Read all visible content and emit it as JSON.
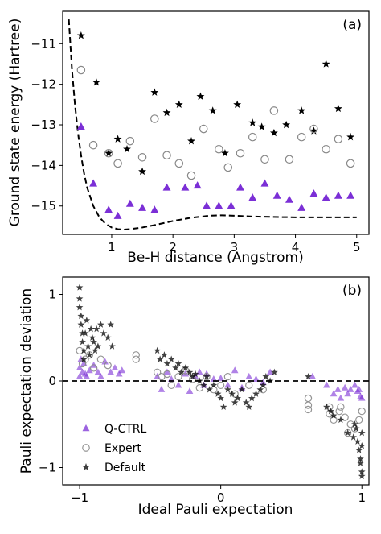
{
  "colors": {
    "qctrl": "#7b2fd6",
    "expert": "#888888",
    "default": "#000000",
    "theory": "#000000"
  },
  "chart_data": [
    {
      "panel": "(a)",
      "type": "scatter",
      "xlabel": "Be-H distance (Angstrom)",
      "ylabel": "Ground state energy (Hartree)",
      "xlim": [
        0.2,
        5.2
      ],
      "ylim": [
        -15.7,
        -10.2
      ],
      "xticks": [
        1,
        2,
        3,
        4,
        5
      ],
      "yticks": [
        -15,
        -14,
        -13,
        -12,
        -11
      ],
      "grid": false,
      "legend": "none",
      "theory_curve": {
        "style": "dashed",
        "x": [
          0.3,
          0.35,
          0.4,
          0.45,
          0.5,
          0.55,
          0.6,
          0.7,
          0.8,
          0.9,
          1.0,
          1.1,
          1.2,
          1.3,
          1.5,
          1.7,
          2.0,
          2.3,
          2.6,
          2.8,
          3.0,
          3.3,
          3.6,
          4.0,
          4.5,
          5.0
        ],
        "y": [
          -10.4,
          -11.6,
          -12.5,
          -13.2,
          -13.75,
          -14.2,
          -14.55,
          -15.0,
          -15.28,
          -15.44,
          -15.53,
          -15.57,
          -15.58,
          -15.57,
          -15.53,
          -15.47,
          -15.37,
          -15.29,
          -15.24,
          -15.23,
          -15.24,
          -15.26,
          -15.27,
          -15.28,
          -15.28,
          -15.28
        ]
      },
      "series": [
        {
          "name": "Default",
          "marker": "star",
          "x": [
            0.5,
            0.75,
            0.95,
            1.1,
            1.25,
            1.5,
            1.7,
            1.9,
            2.1,
            2.3,
            2.45,
            2.65,
            2.85,
            3.05,
            3.3,
            3.45,
            3.65,
            3.85,
            4.1,
            4.3,
            4.5,
            4.7,
            4.9
          ],
          "y": [
            -10.8,
            -11.95,
            -13.7,
            -13.35,
            -13.6,
            -14.15,
            -12.2,
            -12.7,
            -12.5,
            -13.4,
            -12.3,
            -12.65,
            -13.7,
            -12.5,
            -12.95,
            -13.05,
            -13.2,
            -13.0,
            -12.65,
            -13.15,
            -11.5,
            -12.6,
            -13.3
          ]
        },
        {
          "name": "Expert",
          "marker": "circle",
          "x": [
            0.5,
            0.7,
            0.95,
            1.1,
            1.3,
            1.5,
            1.7,
            1.9,
            2.1,
            2.3,
            2.5,
            2.75,
            2.9,
            3.1,
            3.3,
            3.5,
            3.65,
            3.9,
            4.1,
            4.3,
            4.5,
            4.7,
            4.9
          ],
          "y": [
            -11.65,
            -13.5,
            -13.7,
            -13.95,
            -13.4,
            -13.8,
            -12.85,
            -13.75,
            -13.95,
            -14.25,
            -13.1,
            -13.6,
            -14.05,
            -13.7,
            -13.3,
            -13.85,
            -12.65,
            -13.85,
            -13.3,
            -13.1,
            -13.6,
            -13.35,
            -13.95
          ]
        },
        {
          "name": "Q-CTRL",
          "marker": "triangle",
          "x": [
            0.5,
            0.7,
            0.95,
            1.1,
            1.3,
            1.5,
            1.7,
            1.9,
            2.2,
            2.4,
            2.55,
            2.75,
            2.95,
            3.1,
            3.3,
            3.5,
            3.7,
            3.9,
            4.1,
            4.3,
            4.5,
            4.7,
            4.9
          ],
          "y": [
            -13.05,
            -14.45,
            -15.1,
            -15.25,
            -14.95,
            -15.05,
            -15.1,
            -14.55,
            -14.55,
            -14.5,
            -15.0,
            -15.0,
            -15.0,
            -14.55,
            -14.8,
            -14.45,
            -14.75,
            -14.85,
            -15.05,
            -14.7,
            -14.8,
            -14.75,
            -14.75
          ]
        }
      ]
    },
    {
      "panel": "(b)",
      "type": "scatter",
      "xlabel": "Ideal Pauli expectation",
      "ylabel": "Pauli expectation deviation",
      "xlim": [
        -1.12,
        1.05
      ],
      "ylim": [
        -1.2,
        1.2
      ],
      "xticks": [
        -1,
        0,
        1
      ],
      "yticks": [
        -1,
        0,
        1
      ],
      "grid": false,
      "reference_line": {
        "y": 0,
        "style": "dashed"
      },
      "legend_position": "lower-left",
      "legend": [
        "Q-CTRL",
        "Expert",
        "Default"
      ],
      "series": [
        {
          "name": "Q-CTRL",
          "marker": "triangle",
          "x": [
            -1.0,
            -1.0,
            -0.99,
            -0.98,
            -0.97,
            -0.96,
            -0.95,
            -0.93,
            -0.9,
            -0.87,
            -0.85,
            -0.82,
            -0.78,
            -0.75,
            -0.72,
            -0.7,
            -0.45,
            -0.42,
            -0.38,
            -0.35,
            -0.3,
            -0.25,
            -0.22,
            -0.18,
            -0.15,
            -0.12,
            -0.1,
            -0.05,
            0.0,
            0.05,
            0.1,
            0.15,
            0.2,
            0.25,
            0.3,
            0.35,
            0.65,
            0.75,
            0.8,
            0.83,
            0.85,
            0.88,
            0.9,
            0.92,
            0.95,
            0.97,
            0.98,
            0.99,
            1.0
          ],
          "y": [
            0.15,
            0.05,
            0.25,
            0.1,
            0.2,
            0.08,
            0.05,
            0.12,
            0.18,
            0.1,
            0.05,
            0.22,
            0.1,
            0.15,
            0.08,
            0.12,
            0.05,
            -0.1,
            0.1,
            0.02,
            -0.05,
            0.08,
            -0.12,
            0.05,
            0.1,
            -0.05,
            0.08,
            0.02,
            0.03,
            -0.05,
            0.12,
            -0.08,
            0.05,
            0.02,
            -0.02,
            0.1,
            0.05,
            -0.05,
            -0.15,
            -0.1,
            -0.2,
            -0.08,
            -0.15,
            -0.1,
            -0.05,
            -0.12,
            -0.1,
            -0.18,
            -0.2
          ]
        },
        {
          "name": "Expert",
          "marker": "circle",
          "x": [
            -1.0,
            -0.98,
            -0.96,
            -0.93,
            -0.9,
            -0.85,
            -0.8,
            -0.6,
            -0.6,
            -0.45,
            -0.42,
            -0.38,
            -0.35,
            -0.3,
            -0.25,
            -0.2,
            -0.15,
            -0.1,
            -0.05,
            0.0,
            0.05,
            0.1,
            0.2,
            0.3,
            0.62,
            0.62,
            0.62,
            0.77,
            0.77,
            0.8,
            0.84,
            0.88,
            0.92,
            0.95,
            0.98,
            1.0,
            0.9,
            0.85
          ],
          "y": [
            0.35,
            0.2,
            0.25,
            0.3,
            0.15,
            0.25,
            0.18,
            0.3,
            0.25,
            0.1,
            0.05,
            0.08,
            -0.05,
            0.05,
            0.12,
            0.02,
            -0.08,
            0.05,
            -0.1,
            -0.05,
            0.05,
            -0.15,
            -0.05,
            -0.1,
            -0.2,
            -0.28,
            -0.33,
            -0.3,
            -0.38,
            -0.45,
            -0.35,
            -0.42,
            -0.5,
            -0.55,
            -0.45,
            -0.35,
            -0.6,
            -0.3
          ]
        },
        {
          "name": "Default",
          "marker": "star",
          "x": [
            -1.0,
            -1.0,
            -1.0,
            -0.99,
            -0.99,
            -0.98,
            -0.98,
            -0.97,
            -0.97,
            -0.96,
            -0.95,
            -0.94,
            -0.93,
            -0.92,
            -0.91,
            -0.9,
            -0.89,
            -0.88,
            -0.87,
            -0.85,
            -0.83,
            -0.8,
            -0.78,
            -0.77,
            -0.45,
            -0.43,
            -0.4,
            -0.38,
            -0.35,
            -0.32,
            -0.3,
            -0.28,
            -0.25,
            -0.22,
            -0.2,
            -0.18,
            -0.15,
            -0.12,
            -0.1,
            -0.08,
            -0.05,
            -0.02,
            0.0,
            0.02,
            0.05,
            0.08,
            0.1,
            0.12,
            0.15,
            0.18,
            0.2,
            0.22,
            0.25,
            0.28,
            0.3,
            0.32,
            0.35,
            0.38,
            0.62,
            0.75,
            0.78,
            0.8,
            0.85,
            0.9,
            0.95,
            0.97,
            0.98,
            0.99,
            0.99,
            1.0,
            1.0,
            1.0,
            1.0,
            0.96,
            0.94
          ],
          "y": [
            1.08,
            0.95,
            0.85,
            0.75,
            0.65,
            0.55,
            0.45,
            0.35,
            0.25,
            0.55,
            0.7,
            0.4,
            0.3,
            0.6,
            0.5,
            0.45,
            0.35,
            0.6,
            0.4,
            0.65,
            0.55,
            0.5,
            0.65,
            0.4,
            0.35,
            0.25,
            0.3,
            0.2,
            0.25,
            0.15,
            0.2,
            0.1,
            0.15,
            0.1,
            0.05,
            0.08,
            0.0,
            -0.05,
            0.05,
            -0.1,
            -0.05,
            -0.15,
            -0.2,
            -0.3,
            -0.1,
            -0.15,
            -0.25,
            -0.2,
            -0.1,
            -0.25,
            -0.3,
            -0.2,
            -0.15,
            -0.1,
            -0.05,
            0.05,
            0.0,
            0.1,
            0.05,
            -0.3,
            -0.35,
            -0.4,
            -0.45,
            -0.6,
            -0.5,
            -0.7,
            -0.8,
            -0.9,
            -0.95,
            -1.05,
            -1.1,
            -0.75,
            -0.6,
            -0.55,
            -0.65
          ]
        }
      ]
    }
  ]
}
